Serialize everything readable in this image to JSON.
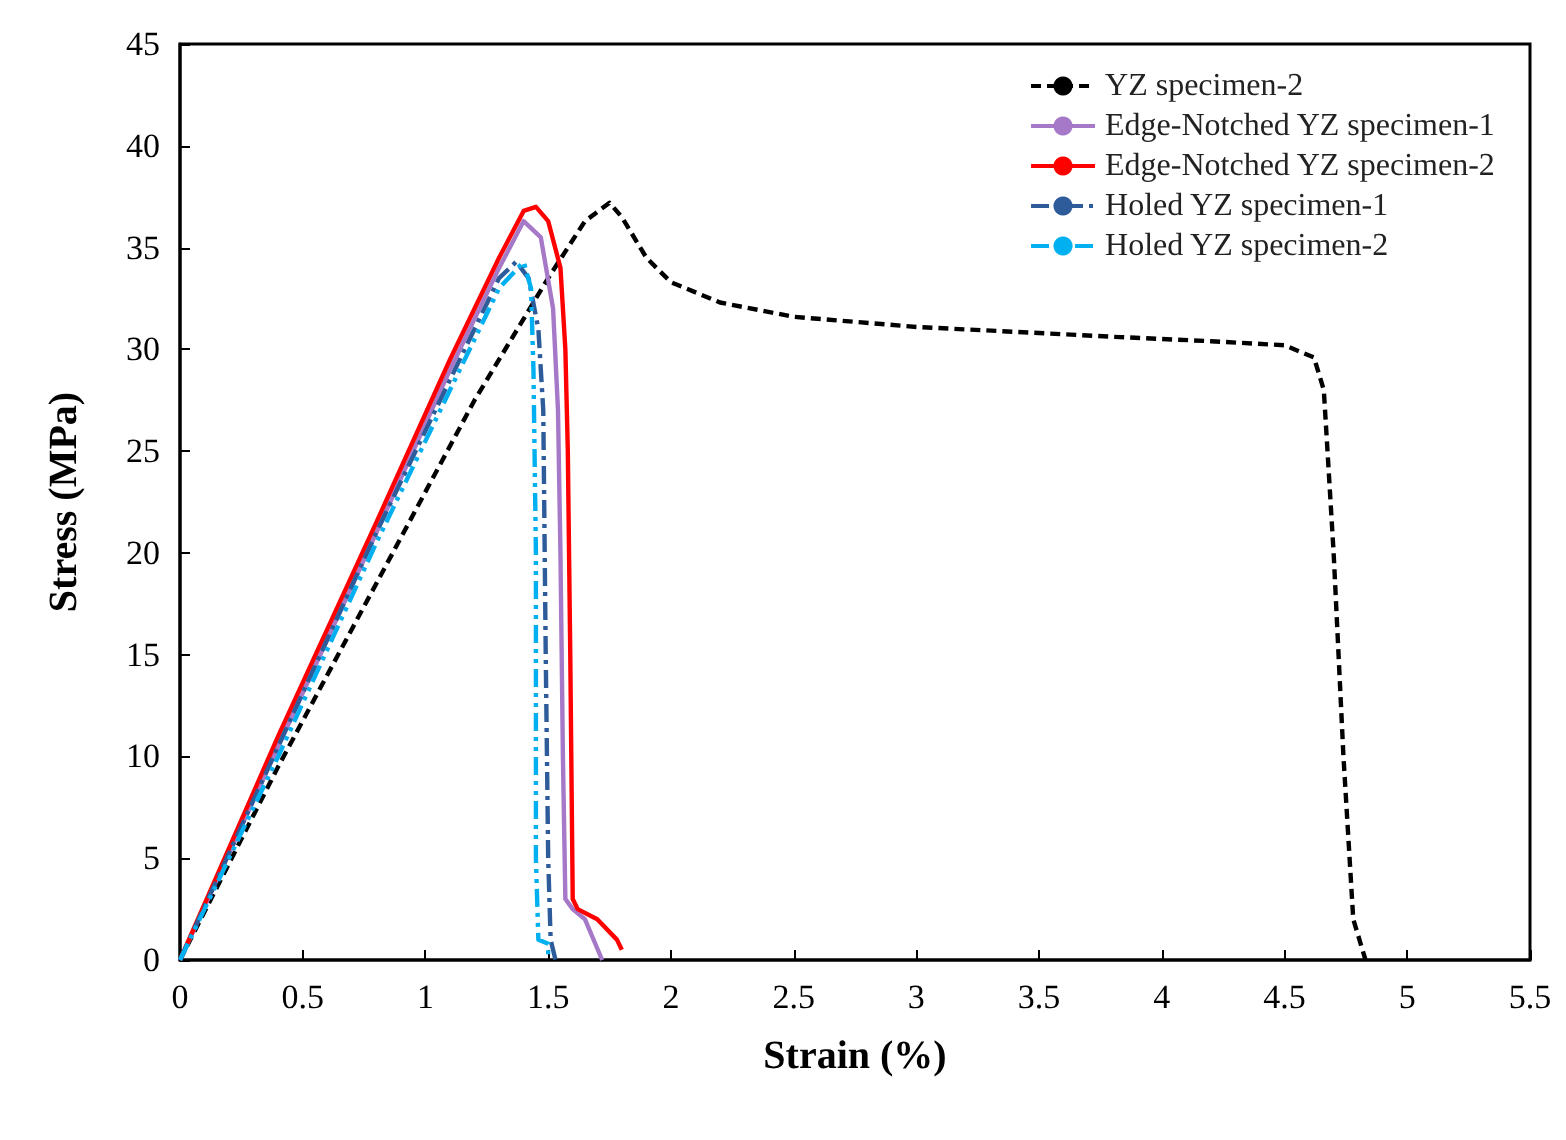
{
  "chart_data": {
    "type": "line",
    "xlabel": "Strain (%)",
    "ylabel": "Stress (MPa)",
    "xlim": [
      0,
      5.5
    ],
    "xticks": [
      0,
      0.5,
      1,
      1.5,
      2,
      2.5,
      3,
      3.5,
      4,
      4.5,
      5,
      5.5
    ],
    "ylim": [
      0,
      45
    ],
    "yticks": [
      0,
      5,
      10,
      15,
      20,
      25,
      30,
      35,
      40,
      45
    ],
    "grid": false,
    "legend": "top right",
    "marker": "none",
    "series": [
      {
        "name": "YZ specimen-2",
        "color": "#000000",
        "line_style": "dashed",
        "x": [
          0,
          0.4,
          0.8,
          1.2,
          1.5,
          1.65,
          1.75,
          1.8,
          1.9,
          2.0,
          2.2,
          2.5,
          3.0,
          3.5,
          3.83,
          4.2,
          4.5,
          4.62,
          4.66,
          4.7,
          4.74,
          4.78,
          4.83
        ],
        "values": [
          0,
          9.5,
          18.5,
          27.5,
          33.5,
          36.3,
          37.2,
          36.5,
          34.5,
          33.3,
          32.3,
          31.6,
          31.1,
          30.8,
          30.6,
          30.4,
          30.2,
          29.6,
          28,
          20,
          10,
          2,
          0
        ]
      },
      {
        "name": "Edge-Notched YZ specimen-1",
        "color": "#a678c8",
        "line_style": "solid",
        "x": [
          0,
          0.4,
          0.8,
          1.1,
          1.3,
          1.4,
          1.47,
          1.52,
          1.54,
          1.55,
          1.56,
          1.57,
          1.6,
          1.65,
          1.72
        ],
        "values": [
          0,
          10.5,
          21,
          29,
          34,
          36.3,
          35.5,
          32,
          27,
          20,
          10,
          3,
          2.5,
          2,
          0
        ]
      },
      {
        "name": "Edge-Notched YZ specimen-2",
        "color": "#ff0000",
        "line_style": "solid",
        "x": [
          0,
          0.4,
          0.8,
          1.1,
          1.3,
          1.4,
          1.45,
          1.5,
          1.55,
          1.57,
          1.58,
          1.59,
          1.6,
          1.62,
          1.7,
          1.78,
          1.8
        ],
        "values": [
          0,
          11,
          21.5,
          29.5,
          34.5,
          36.8,
          37,
          36.3,
          34,
          30,
          25,
          15,
          3,
          2.5,
          2,
          1,
          0.5
        ]
      },
      {
        "name": "Holed YZ specimen-1",
        "color": "#2e5c9a",
        "line_style": "dashdot",
        "x": [
          0,
          0.4,
          0.8,
          1.1,
          1.3,
          1.37,
          1.42,
          1.46,
          1.48,
          1.49,
          1.5,
          1.51,
          1.53
        ],
        "values": [
          0,
          10.5,
          21,
          28.5,
          33.5,
          34.3,
          33.5,
          31,
          27,
          15,
          5,
          1,
          0
        ]
      },
      {
        "name": "Holed YZ specimen-2",
        "color": "#00b0f0",
        "line_style": "dashdotdot",
        "x": [
          0,
          0.4,
          0.8,
          1.1,
          1.3,
          1.4,
          1.43,
          1.44,
          1.45,
          1.45,
          1.46,
          1.5,
          1.5
        ],
        "values": [
          0,
          10,
          20.5,
          28,
          33,
          34.3,
          33,
          29,
          20,
          5,
          1,
          0.8,
          0
        ]
      }
    ]
  }
}
